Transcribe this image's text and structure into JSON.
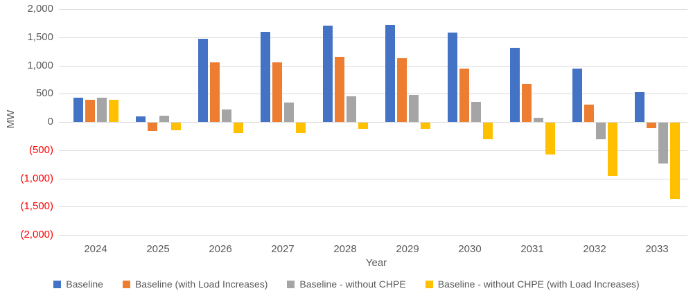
{
  "chart_data": {
    "type": "bar",
    "title": "",
    "xlabel": "Year",
    "ylabel": "MW",
    "ylim": [
      -2000,
      2000
    ],
    "grid": true,
    "legend_position": "bottom",
    "categories": [
      "2024",
      "2025",
      "2026",
      "2027",
      "2028",
      "2029",
      "2030",
      "2031",
      "2032",
      "2033"
    ],
    "series": [
      {
        "name": "Baseline",
        "color": "#4472C4",
        "values": [
          430,
          100,
          1470,
          1590,
          1700,
          1720,
          1580,
          1310,
          940,
          530
        ]
      },
      {
        "name": "Baseline (with Load Increases)",
        "color": "#ED7D31",
        "values": [
          390,
          -150,
          1050,
          1060,
          1150,
          1130,
          950,
          680,
          310,
          -100
        ]
      },
      {
        "name": "Baseline - without CHPE",
        "color": "#A5A5A5",
        "values": [
          430,
          110,
          220,
          340,
          450,
          480,
          350,
          70,
          -300,
          -720
        ]
      },
      {
        "name": "Baseline - without CHPE (with Load Increases)",
        "color": "#FFC000",
        "values": [
          390,
          -140,
          -190,
          -190,
          -110,
          -110,
          -290,
          -570,
          -950,
          -1350
        ]
      }
    ],
    "yticks": [
      {
        "value": 2000,
        "label": "2,000"
      },
      {
        "value": 1500,
        "label": "1,500"
      },
      {
        "value": 1000,
        "label": "1,000"
      },
      {
        "value": 500,
        "label": "500"
      },
      {
        "value": 0,
        "label": "0"
      },
      {
        "value": -500,
        "label": "(500)"
      },
      {
        "value": -1000,
        "label": "(1,000)"
      },
      {
        "value": -1500,
        "label": "(1,500)"
      },
      {
        "value": -2000,
        "label": "(2,000)"
      }
    ],
    "colors": {
      "tick_positive": "#595959",
      "tick_negative": "#FF0000",
      "gridline": "#D9D9D9",
      "axis_text": "#595959"
    }
  }
}
